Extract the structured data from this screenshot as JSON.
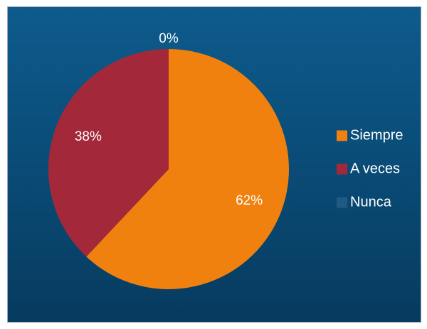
{
  "chart_data": {
    "type": "pie",
    "title": "",
    "categories": [
      "Siempre",
      "A veces",
      "Nunca"
    ],
    "values": [
      62,
      38,
      0
    ],
    "labels": [
      "62%",
      "38%",
      "0%"
    ],
    "colors": [
      "#f0810f",
      "#a3293a",
      "#1f5a82"
    ],
    "legend_placement": "right"
  }
}
